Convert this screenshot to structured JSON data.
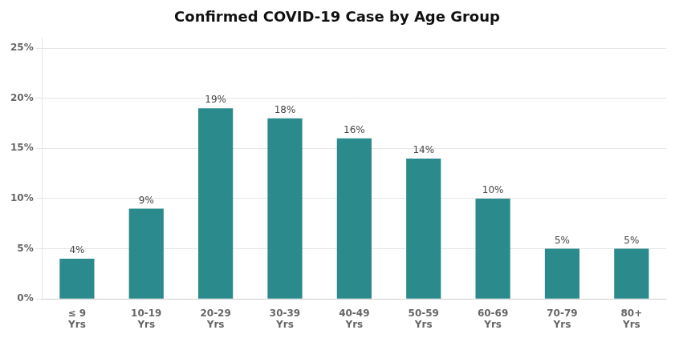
{
  "chart_data": {
    "type": "bar",
    "title": "Confirmed COVID-19 Case by Age Group",
    "categories": [
      "≤ 9\nYrs",
      "10-19\nYrs",
      "20-29\nYrs",
      "30-39\nYrs",
      "40-49\nYrs",
      "50-59\nYrs",
      "60-69\nYrs",
      "70-79\nYrs",
      "80+\nYrs"
    ],
    "values": [
      4,
      9,
      19,
      18,
      16,
      14,
      10,
      5,
      5
    ],
    "value_labels": [
      "4%",
      "9%",
      "19%",
      "18%",
      "16%",
      "14%",
      "10%",
      "5%",
      "5%"
    ],
    "color": "#2a8a8c",
    "ylim": [
      0,
      26
    ],
    "yticks": [
      {
        "value": 0,
        "label": "0%"
      },
      {
        "value": 5,
        "label": "5%"
      },
      {
        "value": 10,
        "label": "10%"
      },
      {
        "value": 15,
        "label": "15%"
      },
      {
        "value": 20,
        "label": "20%"
      },
      {
        "value": 25,
        "label": "25%"
      }
    ],
    "grid": true,
    "data_labels": true
  }
}
